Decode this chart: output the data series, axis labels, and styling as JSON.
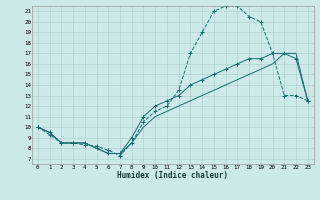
{
  "xlabel": "Humidex (Indice chaleur)",
  "bg_color": "#cceaea",
  "grid_color": "#aacccc",
  "line_color": "#1a6b6b",
  "xlim": [
    -0.5,
    23.5
  ],
  "ylim": [
    6.5,
    21.5
  ],
  "xticks": [
    0,
    1,
    2,
    3,
    4,
    5,
    6,
    7,
    8,
    9,
    10,
    11,
    12,
    13,
    14,
    15,
    16,
    17,
    18,
    19,
    20,
    21,
    22,
    23
  ],
  "yticks": [
    7,
    8,
    9,
    10,
    11,
    12,
    13,
    14,
    15,
    16,
    17,
    18,
    19,
    20,
    21
  ],
  "line1_x": [
    0,
    1,
    2,
    3,
    4,
    5,
    6,
    7,
    8,
    9,
    10,
    11,
    12,
    13,
    14,
    15,
    16,
    17,
    18,
    19,
    20,
    21,
    22,
    23
  ],
  "line1_y": [
    10,
    9.3,
    8.5,
    8.5,
    8.3,
    8.2,
    7.8,
    7.3,
    8.5,
    10.5,
    11.5,
    12.0,
    13.5,
    17.0,
    19.0,
    21.0,
    21.5,
    21.5,
    20.5,
    20.0,
    17.0,
    13.0,
    13.0,
    12.5
  ],
  "line2_x": [
    0,
    1,
    2,
    3,
    4,
    5,
    6,
    7,
    8,
    9,
    10,
    11,
    12,
    13,
    14,
    15,
    16,
    17,
    18,
    19,
    20,
    21,
    22,
    23
  ],
  "line2_y": [
    10,
    9.5,
    8.5,
    8.5,
    8.5,
    8.0,
    7.5,
    7.5,
    9.0,
    11.0,
    12.0,
    12.5,
    13.0,
    14.0,
    14.5,
    15.0,
    15.5,
    16.0,
    16.5,
    16.5,
    17.0,
    17.0,
    16.5,
    12.5
  ],
  "line3_x": [
    0,
    1,
    2,
    3,
    4,
    5,
    6,
    7,
    8,
    9,
    10,
    11,
    12,
    13,
    14,
    15,
    16,
    17,
    18,
    19,
    20,
    21,
    22,
    23
  ],
  "line3_y": [
    10,
    9.5,
    8.5,
    8.5,
    8.5,
    8.0,
    7.5,
    7.5,
    8.5,
    10.0,
    11.0,
    11.5,
    12.0,
    12.5,
    13.0,
    13.5,
    14.0,
    14.5,
    15.0,
    15.5,
    16.0,
    17.0,
    17.0,
    12.5
  ]
}
